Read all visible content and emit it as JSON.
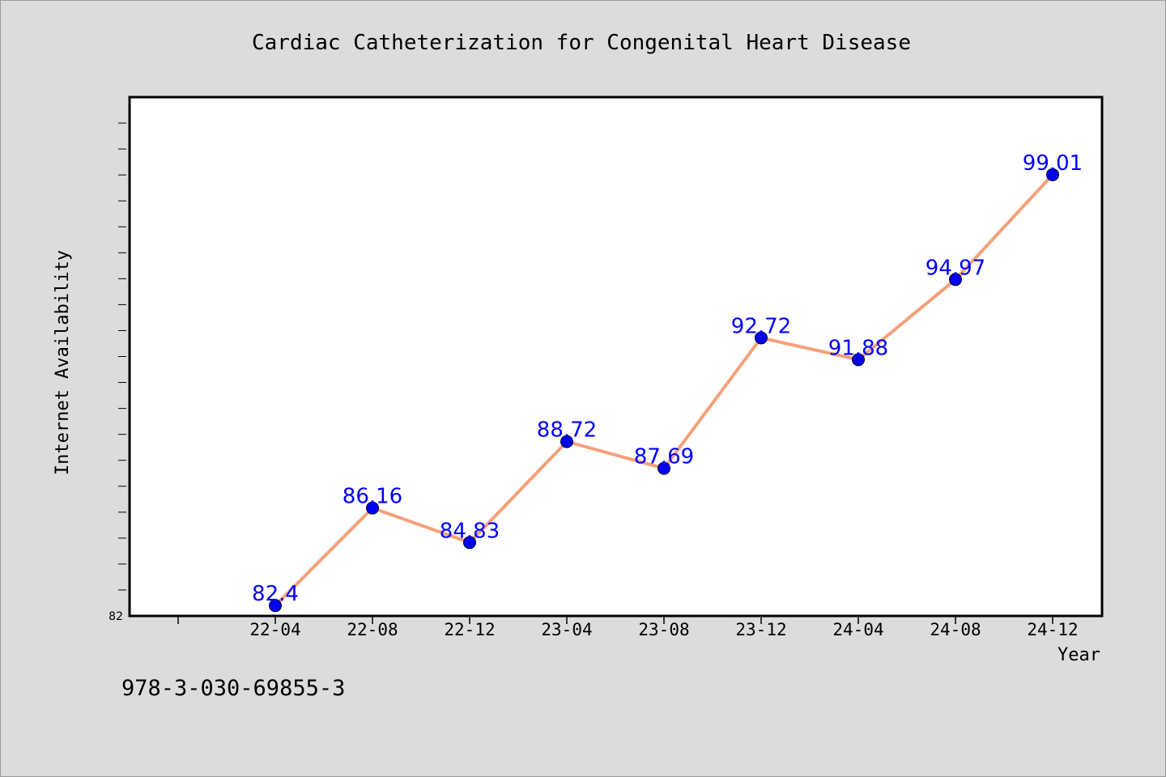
{
  "chart_data": {
    "type": "line",
    "title": "Cardiac Catheterization for Congenital Heart Disease",
    "xlabel": "Year",
    "ylabel": "Internet Availability",
    "categories": [
      "22-04",
      "22-08",
      "22-12",
      "23-04",
      "23-08",
      "23-12",
      "24-04",
      "24-08",
      "24-12"
    ],
    "series": [
      {
        "values": [
          82.4,
          86.16,
          84.83,
          88.72,
          87.69,
          92.72,
          91.88,
          94.97,
          99.01
        ],
        "labels": [
          "82.4",
          "86.16",
          "84.83",
          "88.72",
          "87.69",
          "92.72",
          "91.88",
          "94.97",
          "99.01"
        ]
      }
    ],
    "ylim": [
      82,
      102
    ],
    "y_tick_labels": [
      "82"
    ],
    "grid": false,
    "line_color": "#f4a07a",
    "marker_color": "#0000ee",
    "label_color": "#0000ff"
  },
  "footnote": "978-3-030-69855-3"
}
